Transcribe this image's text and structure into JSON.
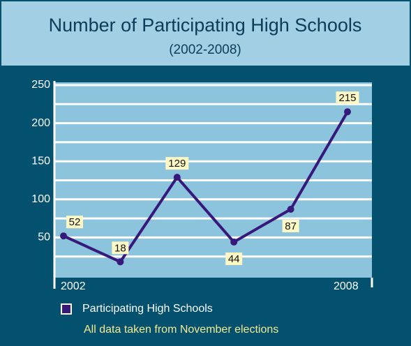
{
  "chart_data": {
    "type": "line",
    "title": "Number of Participating High Schools",
    "subtitle": "(2002-2008)",
    "categories": [
      "2002",
      null,
      null,
      null,
      null,
      "2008"
    ],
    "series": [
      {
        "name": "Participating High Schools",
        "color": "#36197a",
        "values": [
          52,
          18,
          129,
          44,
          87,
          215
        ]
      }
    ],
    "ylim": [
      0,
      250
    ],
    "yticks": [
      50,
      100,
      150,
      200,
      250
    ],
    "grid": true,
    "note": "All data taken from November elections"
  }
}
